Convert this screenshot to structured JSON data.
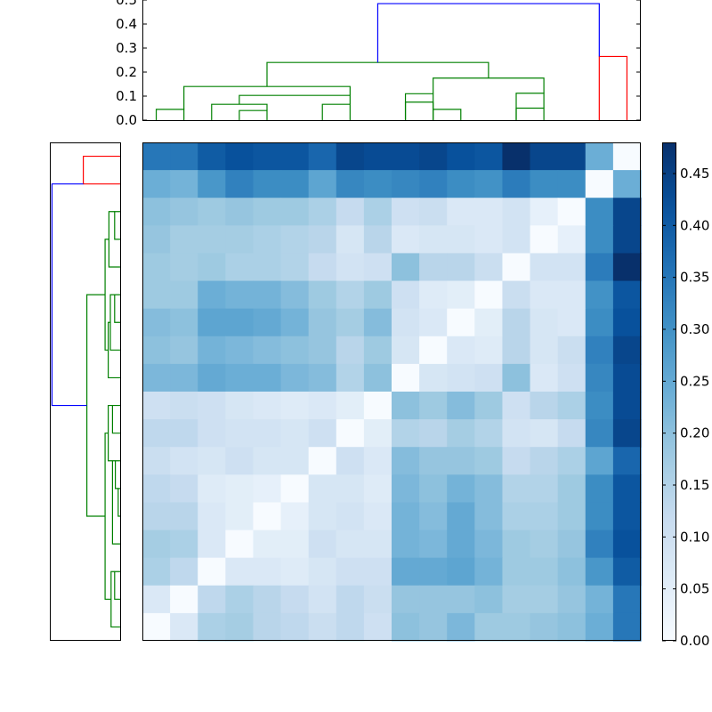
{
  "chart_data": {
    "type": "heatmap",
    "title": "",
    "xlabel": "",
    "ylabel": "",
    "n": 18,
    "colormap": "Blues",
    "colorbar": {
      "range": [
        0.0,
        0.48
      ],
      "ticks": [
        0.0,
        0.05,
        0.1,
        0.15,
        0.2,
        0.25,
        0.3,
        0.35,
        0.4,
        0.45
      ],
      "tick_labels": [
        "0.00",
        "0.05",
        "0.10",
        "0.15",
        "0.20",
        "0.25",
        "0.30",
        "0.35",
        "0.40",
        "0.45"
      ]
    },
    "matrix": [
      [
        0.35,
        0.35,
        0.4,
        0.42,
        0.41,
        0.41,
        0.38,
        0.44,
        0.43,
        0.43,
        0.44,
        0.42,
        0.41,
        0.48,
        0.44,
        0.44,
        0.24,
        0.0
      ],
      [
        0.24,
        0.23,
        0.29,
        0.33,
        0.31,
        0.31,
        0.26,
        0.32,
        0.31,
        0.32,
        0.33,
        0.31,
        0.3,
        0.34,
        0.31,
        0.31,
        0.0,
        0.24
      ],
      [
        0.2,
        0.19,
        0.18,
        0.19,
        0.18,
        0.18,
        0.16,
        0.12,
        0.16,
        0.1,
        0.11,
        0.07,
        0.07,
        0.09,
        0.04,
        0.0,
        0.31,
        0.44
      ],
      [
        0.19,
        0.17,
        0.17,
        0.17,
        0.16,
        0.15,
        0.14,
        0.08,
        0.14,
        0.07,
        0.08,
        0.08,
        0.07,
        0.09,
        0.0,
        0.04,
        0.31,
        0.44
      ],
      [
        0.18,
        0.17,
        0.18,
        0.16,
        0.16,
        0.15,
        0.12,
        0.09,
        0.1,
        0.2,
        0.14,
        0.14,
        0.11,
        0.0,
        0.09,
        0.09,
        0.34,
        0.48
      ],
      [
        0.18,
        0.18,
        0.24,
        0.23,
        0.23,
        0.21,
        0.18,
        0.15,
        0.18,
        0.1,
        0.06,
        0.05,
        0.0,
        0.11,
        0.07,
        0.07,
        0.3,
        0.41
      ],
      [
        0.21,
        0.2,
        0.26,
        0.26,
        0.25,
        0.23,
        0.19,
        0.17,
        0.21,
        0.09,
        0.07,
        0.0,
        0.05,
        0.14,
        0.08,
        0.07,
        0.31,
        0.42
      ],
      [
        0.2,
        0.19,
        0.23,
        0.22,
        0.21,
        0.2,
        0.19,
        0.14,
        0.18,
        0.08,
        0.0,
        0.07,
        0.06,
        0.14,
        0.08,
        0.11,
        0.33,
        0.44
      ],
      [
        0.22,
        0.22,
        0.25,
        0.24,
        0.24,
        0.22,
        0.21,
        0.15,
        0.2,
        0.0,
        0.08,
        0.09,
        0.1,
        0.2,
        0.07,
        0.1,
        0.32,
        0.43
      ],
      [
        0.1,
        0.11,
        0.1,
        0.08,
        0.07,
        0.06,
        0.07,
        0.05,
        0.0,
        0.2,
        0.18,
        0.21,
        0.18,
        0.1,
        0.14,
        0.16,
        0.31,
        0.43
      ],
      [
        0.13,
        0.13,
        0.1,
        0.09,
        0.09,
        0.08,
        0.1,
        0.0,
        0.05,
        0.15,
        0.14,
        0.17,
        0.15,
        0.09,
        0.08,
        0.12,
        0.32,
        0.44
      ],
      [
        0.11,
        0.09,
        0.08,
        0.1,
        0.08,
        0.08,
        0.0,
        0.1,
        0.07,
        0.21,
        0.19,
        0.19,
        0.18,
        0.12,
        0.14,
        0.16,
        0.26,
        0.38
      ],
      [
        0.13,
        0.12,
        0.06,
        0.05,
        0.04,
        0.0,
        0.08,
        0.08,
        0.06,
        0.22,
        0.2,
        0.23,
        0.21,
        0.15,
        0.15,
        0.18,
        0.31,
        0.41
      ],
      [
        0.14,
        0.14,
        0.07,
        0.05,
        0.0,
        0.04,
        0.08,
        0.09,
        0.07,
        0.23,
        0.21,
        0.25,
        0.21,
        0.16,
        0.16,
        0.18,
        0.31,
        0.41
      ],
      [
        0.17,
        0.16,
        0.07,
        0.0,
        0.05,
        0.05,
        0.1,
        0.08,
        0.08,
        0.23,
        0.22,
        0.25,
        0.22,
        0.18,
        0.17,
        0.19,
        0.33,
        0.42
      ],
      [
        0.16,
        0.13,
        0.0,
        0.07,
        0.07,
        0.06,
        0.08,
        0.1,
        0.1,
        0.25,
        0.25,
        0.26,
        0.23,
        0.18,
        0.18,
        0.2,
        0.29,
        0.4
      ],
      [
        0.07,
        0.0,
        0.13,
        0.16,
        0.14,
        0.12,
        0.09,
        0.13,
        0.11,
        0.19,
        0.19,
        0.19,
        0.2,
        0.17,
        0.17,
        0.19,
        0.23,
        0.35
      ],
      [
        0.0,
        0.07,
        0.16,
        0.17,
        0.14,
        0.13,
        0.11,
        0.13,
        0.1,
        0.2,
        0.19,
        0.22,
        0.18,
        0.18,
        0.19,
        0.2,
        0.24,
        0.35
      ]
    ],
    "top_dendrogram": {
      "ylim": [
        0.0,
        0.5
      ],
      "ticks": [
        0.0,
        0.1,
        0.2,
        0.3,
        0.4,
        0.5
      ],
      "tick_labels": [
        "0.0",
        "0.1",
        "0.2",
        "0.3",
        "0.4",
        "0.5"
      ],
      "links": [
        {
          "a": 0,
          "b": 1,
          "h": 0.045,
          "ha": 0,
          "hb": 0,
          "color": "#008000"
        },
        {
          "a": 3,
          "b": 4,
          "h": 0.04,
          "ha": 0,
          "hb": 0,
          "color": "#008000"
        },
        {
          "a": 2,
          "b": 4,
          "h": 0.066,
          "ha": 0,
          "hb": 0.04,
          "color": "#008000"
        },
        {
          "a": 6,
          "b": 7,
          "h": 0.066,
          "ha": 0,
          "hb": 0,
          "color": "#008000"
        },
        {
          "a": 3,
          "b": 7,
          "h": 0.103,
          "ha": 0.066,
          "hb": 0.066,
          "color": "#008000"
        },
        {
          "a": 1,
          "b": 7,
          "h": 0.14,
          "ha": 0.045,
          "hb": 0.103,
          "color": "#008000"
        },
        {
          "a": 9,
          "b": 10,
          "h": 0.075,
          "ha": 0,
          "hb": 0,
          "color": "#008000"
        },
        {
          "a": 10,
          "b": 11,
          "h": 0.045,
          "ha": 0,
          "hb": 0,
          "color": "#008000"
        },
        {
          "a": 9,
          "b": 10,
          "h": 0.11,
          "ha": 0,
          "hb": 0.045,
          "color": "#008000"
        },
        {
          "a": 13,
          "b": 14,
          "h": 0.05,
          "ha": 0,
          "hb": 0,
          "color": "#008000"
        },
        {
          "a": 13,
          "b": 14,
          "h": 0.112,
          "ha": 0,
          "hb": 0.05,
          "color": "#008000"
        },
        {
          "a": 10,
          "b": 14,
          "h": 0.175,
          "ha": 0.11,
          "hb": 0.112,
          "color": "#008000"
        },
        {
          "a": 4,
          "b": 12,
          "h": 0.24,
          "ha": 0.14,
          "hb": 0.175,
          "color": "#008000"
        },
        {
          "a": 16,
          "b": 17,
          "h": 0.265,
          "ha": 0,
          "hb": 0,
          "color": "#ff0000"
        },
        {
          "a": 8,
          "b": 16,
          "h": 0.485,
          "ha": 0.24,
          "hb": 0.265,
          "color": "#0000ff"
        }
      ]
    },
    "left_dendrogram": {
      "links": [
        {
          "a": 0,
          "b": 1,
          "h": 0.265,
          "ha": 0,
          "hb": 0,
          "color": "#ff0000"
        },
        {
          "a": 15,
          "b": 16,
          "h": 0.045,
          "ha": 0,
          "hb": 0,
          "color": "#008000"
        },
        {
          "a": 15,
          "b": 17,
          "h": 0.07,
          "ha": 0.045,
          "hb": 0,
          "color": "#008000"
        },
        {
          "a": 12,
          "b": 13,
          "h": 0.02,
          "ha": 0,
          "hb": 0,
          "color": "#008000"
        },
        {
          "a": 11,
          "b": 12,
          "h": 0.04,
          "ha": 0,
          "hb": 0.02,
          "color": "#008000"
        },
        {
          "a": 11,
          "b": 14,
          "h": 0.06,
          "ha": 0.04,
          "hb": 0,
          "color": "#008000"
        },
        {
          "a": 9,
          "b": 10,
          "h": 0.06,
          "ha": 0,
          "hb": 0,
          "color": "#008000"
        },
        {
          "a": 9,
          "b": 11,
          "h": 0.09,
          "ha": 0.06,
          "hb": 0.06,
          "color": "#008000"
        },
        {
          "a": 10,
          "b": 16,
          "h": 0.112,
          "ha": 0.09,
          "hb": 0.07,
          "color": "#008000"
        },
        {
          "a": 5,
          "b": 6,
          "h": 0.045,
          "ha": 0,
          "hb": 0,
          "color": "#008000"
        },
        {
          "a": 5,
          "b": 7,
          "h": 0.075,
          "ha": 0.045,
          "hb": 0,
          "color": "#008000"
        },
        {
          "a": 6,
          "b": 8,
          "h": 0.09,
          "ha": 0.075,
          "hb": 0,
          "color": "#008000"
        },
        {
          "a": 2,
          "b": 3,
          "h": 0.045,
          "ha": 0,
          "hb": 0,
          "color": "#008000"
        },
        {
          "a": 2,
          "b": 4,
          "h": 0.085,
          "ha": 0.045,
          "hb": 0,
          "color": "#008000"
        },
        {
          "a": 3,
          "b": 7,
          "h": 0.112,
          "ha": 0.085,
          "hb": 0.09,
          "color": "#008000"
        },
        {
          "a": 5,
          "b": 13,
          "h": 0.24,
          "ha": 0.112,
          "hb": 0.112,
          "color": "#008000"
        },
        {
          "a": 1,
          "b": 9,
          "h": 0.485,
          "ha": 0.265,
          "hb": 0.24,
          "color": "#0000ff"
        }
      ]
    }
  }
}
